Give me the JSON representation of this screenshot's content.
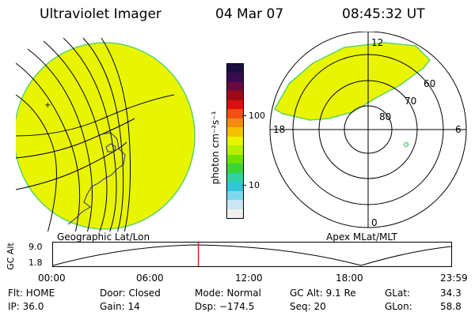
{
  "header": {
    "title": "Ultraviolet Imager",
    "date": "04 Mar 07",
    "time": "08:45:32 UT"
  },
  "colors": {
    "fill": "#e9f500",
    "edge": "#5fd36a",
    "marker_red": "#e02020"
  },
  "colorbar": {
    "label": "photon cm⁻²s⁻¹",
    "ticks": [
      "100",
      "10"
    ],
    "colors": [
      "#1a1040",
      "#3a0a50",
      "#6a0a40",
      "#a00818",
      "#d81010",
      "#f05010",
      "#f58a10",
      "#f5c000",
      "#e9f500",
      "#b5ee00",
      "#70e000",
      "#38d438",
      "#2ed3a0",
      "#30c8d8",
      "#7fd8f0",
      "#c8e8f0",
      "#f0f0f0"
    ]
  },
  "geo_map": {
    "caption": "Geographic Lat/Lon"
  },
  "polar_map": {
    "caption": "Apex MLat/MLT",
    "mlt_labels": {
      "top": "12",
      "left": "18",
      "right": "6",
      "bottom": "0"
    },
    "lat_labels": [
      "60",
      "70",
      "80"
    ]
  },
  "altitude_plot": {
    "ylabel": "GC Alt",
    "yticks": [
      "9.0",
      "1.8"
    ],
    "xticks": [
      "00:00",
      "06:00",
      "12:00",
      "18:00",
      "23:59"
    ],
    "current_time_hours": 8.76
  },
  "info": {
    "flt": "Flt: HOME",
    "ip": "IP: 36.0",
    "door": "Door: Closed",
    "gain": "Gain: 14",
    "mode": "Mode: Normal",
    "dsp": "Dsp: −174.5",
    "gc_alt": "GC Alt: 9.1 Re",
    "seq": "Seq: 20",
    "glat_label": "GLat:",
    "glat_value": "34.3",
    "glon_label": "GLon:",
    "glon_value": "58.8"
  }
}
